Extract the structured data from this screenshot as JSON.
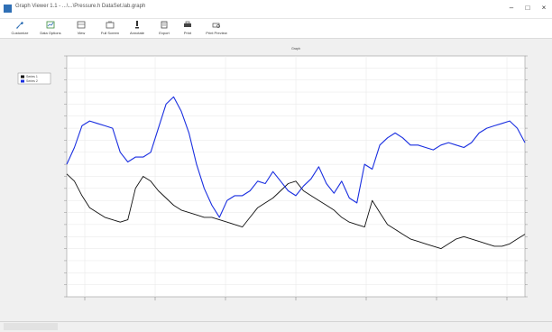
{
  "window": {
    "title": "Graph Viewer 1.1 - ...\\...\\Pressure.h DataSet.lab.graph"
  },
  "toolbar": {
    "items": [
      {
        "label": "Customize",
        "icon": "wrench-icon"
      },
      {
        "label": "Data Options",
        "icon": "data-options-icon"
      },
      {
        "label": "View",
        "icon": "view-icon"
      },
      {
        "label": "Full Screen",
        "icon": "full-screen-icon"
      },
      {
        "label": "Annotate",
        "icon": "annotate-icon"
      },
      {
        "label": "Export",
        "icon": "export-icon"
      },
      {
        "label": "Print",
        "icon": "print-icon"
      },
      {
        "label": "Print Preview",
        "icon": "print-preview-icon"
      }
    ]
  },
  "chart": {
    "title": "Graph",
    "legend": [
      {
        "label": "Series 1",
        "color": "#111111"
      },
      {
        "label": "Series 2",
        "color": "#1a2fe0"
      }
    ],
    "colors": {
      "series_dark": "#111111",
      "series_blue": "#1a2fe0",
      "plot_bg": "#ffffff",
      "grid": "#e6e6e6"
    }
  },
  "chart_data": {
    "type": "line",
    "title": "Graph",
    "xlabel": "",
    "ylabel": "",
    "grid": true,
    "legend_position": "top-left",
    "x_ticks": [
      "",
      "",
      "",
      "",
      "",
      "",
      ""
    ],
    "x": [
      0,
      1,
      2,
      3,
      4,
      5,
      6,
      7,
      8,
      9,
      10,
      11,
      12,
      13,
      14,
      15,
      16,
      17,
      18,
      19,
      20,
      21,
      22,
      23,
      24,
      25,
      26,
      27,
      28,
      29,
      30,
      31,
      32,
      33,
      34,
      35,
      36,
      37,
      38,
      39,
      40,
      41,
      42,
      43,
      44,
      45,
      46,
      47,
      48,
      49,
      50,
      51,
      52,
      53,
      54,
      55,
      56,
      57,
      58,
      59,
      60
    ],
    "series": [
      {
        "name": "Series 1",
        "values": [
          51,
          48,
          42,
          37,
          35,
          33,
          32,
          31,
          32,
          45,
          50,
          48,
          44,
          41,
          38,
          36,
          35,
          34,
          33,
          33,
          32,
          31,
          30,
          29,
          33,
          37,
          39,
          41,
          44,
          47,
          48,
          44,
          42,
          40,
          38,
          36,
          33,
          31,
          30,
          29,
          40,
          35,
          30,
          28,
          26,
          24,
          23,
          22,
          21,
          20,
          22,
          24,
          25,
          24,
          23,
          22,
          21,
          21,
          22,
          24,
          26
        ]
      },
      {
        "name": "Series 2",
        "values": [
          55,
          62,
          71,
          73,
          72,
          71,
          70,
          60,
          56,
          58,
          58,
          60,
          70,
          80,
          83,
          77,
          68,
          55,
          45,
          38,
          33,
          40,
          42,
          42,
          44,
          48,
          47,
          52,
          48,
          44,
          42,
          46,
          49,
          54,
          47,
          43,
          48,
          41,
          39,
          55,
          53,
          63,
          66,
          68,
          66,
          63,
          63,
          62,
          61,
          63,
          64,
          63,
          62,
          64,
          68,
          70,
          71,
          72,
          73,
          70,
          64
        ]
      }
    ],
    "ylim": [
      0,
      100
    ]
  }
}
